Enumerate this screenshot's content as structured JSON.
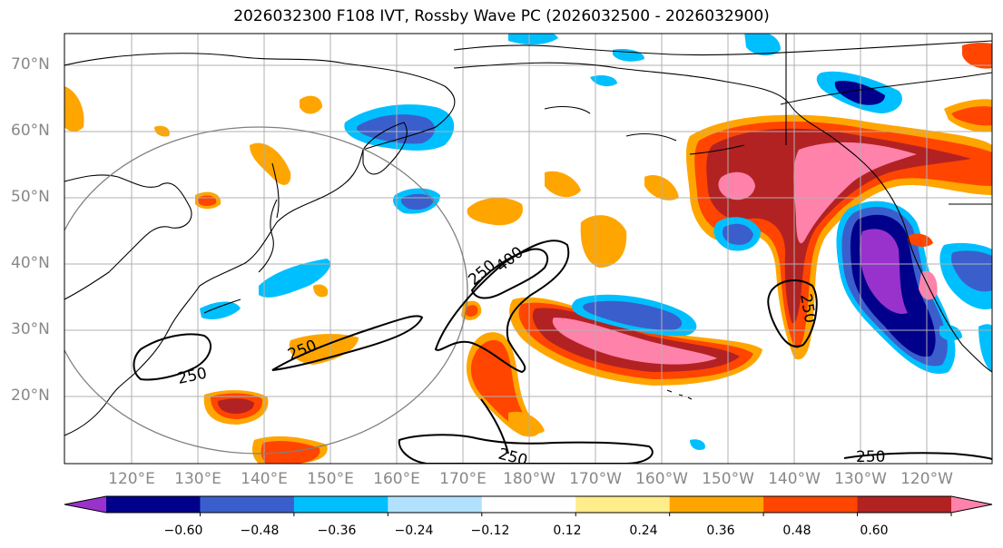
{
  "title": "2026032300 F108 IVT, Rossby Wave PC (2026032500 - 2026032900)",
  "lat_labels": [
    "70°N",
    "60°N",
    "50°N",
    "40°N",
    "30°N",
    "20°N"
  ],
  "lon_labels": [
    "120°E",
    "130°E",
    "140°E",
    "150°E",
    "160°E",
    "170°E",
    "180°W",
    "170°W",
    "160°W",
    "150°W",
    "140°W",
    "130°W",
    "120°W"
  ],
  "contour_labels": [
    "250",
    "250",
    "250",
    "400",
    "250",
    "250",
    "250"
  ],
  "colorbar": {
    "colors": [
      "#9932cc",
      "#00008b",
      "#3a5fcd",
      "#00bfff",
      "#b0e2ff",
      "#ffffff",
      "#ffec8b",
      "#ffa500",
      "#ff4500",
      "#b22222",
      "#ff82ab"
    ],
    "ticks": [
      "−0.60",
      "−0.48",
      "−0.36",
      "−0.24",
      "−0.12",
      "0.12",
      "0.24",
      "0.36",
      "0.48",
      "0.60"
    ]
  }
}
